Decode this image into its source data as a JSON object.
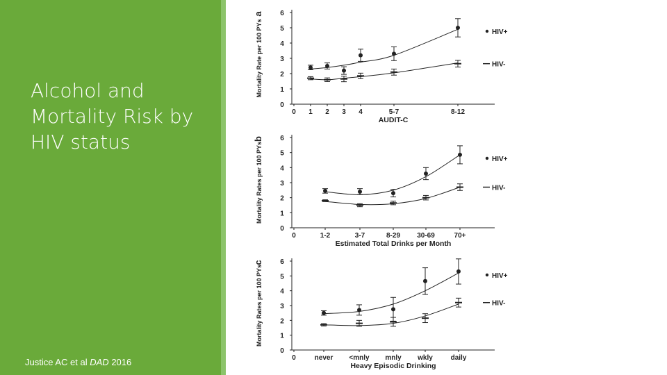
{
  "slide": {
    "title": "Alcohol and Mortality Risk by HIV status",
    "citation_authors": "Justice AC et al",
    "citation_journal": "DAD",
    "citation_year": "2016"
  },
  "colors": {
    "panel": "#6aaa3a",
    "accent": "#8cc46a",
    "ink": "#222222"
  },
  "chart_data": [
    {
      "type": "line",
      "panel_label": "a",
      "xlabel": "AUDIT-C",
      "ylabel": "Mortality Rate per 100 PYs",
      "ylim": [
        0,
        6
      ],
      "yticks": [
        0,
        1,
        2,
        3,
        4,
        5,
        6
      ],
      "xticks": [
        "0",
        "1",
        "2",
        "3",
        "4",
        "5-7",
        "8-12"
      ],
      "grid": false,
      "legend_position": "right",
      "series": [
        {
          "name": "HIV+",
          "marker": "dot",
          "x": [
            "1",
            "2",
            "3",
            "4",
            "5-7",
            "8-12"
          ],
          "values": [
            2.4,
            2.5,
            2.2,
            3.2,
            3.3,
            5.0
          ],
          "err": [
            0.15,
            0.2,
            0.25,
            0.4,
            0.45,
            0.6
          ],
          "fit": [
            2.3,
            2.4,
            2.55,
            2.75,
            3.2,
            4.9
          ]
        },
        {
          "name": "HIV-",
          "marker": "dash",
          "x": [
            "1",
            "2",
            "3",
            "4",
            "5-7",
            "8-12"
          ],
          "values": [
            1.7,
            1.6,
            1.65,
            1.85,
            2.1,
            2.65
          ],
          "err": [
            0.1,
            0.12,
            0.18,
            0.18,
            0.2,
            0.22
          ],
          "fit": [
            1.65,
            1.6,
            1.7,
            1.8,
            2.05,
            2.7
          ]
        }
      ]
    },
    {
      "type": "line",
      "panel_label": "b",
      "xlabel": "Estimated Total Drinks per Month",
      "ylabel": "Mortality Rates per 100 PYs",
      "ylim": [
        0,
        6
      ],
      "yticks": [
        0,
        1,
        2,
        3,
        4,
        5,
        6
      ],
      "xticks": [
        "0",
        "1-2",
        "3-7",
        "8-29",
        "30-69",
        "70+"
      ],
      "grid": false,
      "legend_position": "right",
      "series": [
        {
          "name": "HIV+",
          "marker": "dot",
          "x": [
            "1-2",
            "3-7",
            "8-29",
            "30-69",
            "70+"
          ],
          "values": [
            2.45,
            2.4,
            2.3,
            3.6,
            4.85
          ],
          "err": [
            0.15,
            0.2,
            0.25,
            0.4,
            0.6
          ],
          "fit": [
            2.4,
            2.2,
            2.5,
            3.4,
            4.85
          ]
        },
        {
          "name": "HIV-",
          "marker": "dash",
          "x": [
            "1-2",
            "3-7",
            "8-29",
            "30-69",
            "70+"
          ],
          "values": [
            1.8,
            1.5,
            1.65,
            2.0,
            2.7
          ],
          "err": [
            0.06,
            0.1,
            0.12,
            0.15,
            0.22
          ],
          "fit": [
            1.75,
            1.55,
            1.6,
            1.95,
            2.7
          ]
        }
      ]
    },
    {
      "type": "line",
      "panel_label": "c",
      "xlabel": "Heavy Episodic Drinking",
      "ylabel": "Mortality Rates per 100 PYs",
      "ylim": [
        0,
        6
      ],
      "yticks": [
        0,
        1,
        2,
        3,
        4,
        5,
        6
      ],
      "xticks": [
        "0",
        "never",
        "<mnly",
        "mnly",
        "wkly",
        "daily"
      ],
      "grid": false,
      "legend_position": "right",
      "series": [
        {
          "name": "HIV+",
          "marker": "dot",
          "x": [
            "never",
            "<mnly",
            "mnly",
            "wkly",
            "daily"
          ],
          "values": [
            2.5,
            2.7,
            2.75,
            4.65,
            5.3
          ],
          "err": [
            0.15,
            0.35,
            0.8,
            0.9,
            0.85
          ],
          "fit": [
            2.45,
            2.6,
            3.1,
            4.0,
            5.2
          ]
        },
        {
          "name": "HIV-",
          "marker": "dash",
          "x": [
            "never",
            "<mnly",
            "mnly",
            "wkly",
            "daily"
          ],
          "values": [
            1.7,
            1.8,
            1.9,
            2.15,
            3.2
          ],
          "err": [
            0.08,
            0.2,
            0.3,
            0.3,
            0.3
          ],
          "fit": [
            1.7,
            1.65,
            1.8,
            2.3,
            3.1
          ]
        }
      ]
    }
  ]
}
